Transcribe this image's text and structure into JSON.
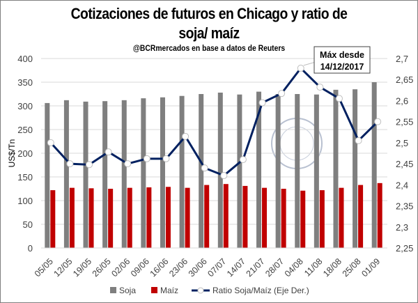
{
  "chart_data": {
    "type": "bar",
    "title_line1": "Cotizaciones de futuros en Chicago y ratio de",
    "title_line2": "soja/ maíz",
    "subtitle": "@BCRmercados en base a datos de Reuters",
    "ylabel": "US$/Tn",
    "ylim": [
      0,
      400
    ],
    "y_ticks": [
      "0",
      "50",
      "100",
      "150",
      "200",
      "250",
      "300",
      "350",
      "400"
    ],
    "y2lim": [
      2.25,
      2.7
    ],
    "y2_ticks": [
      "2,25",
      "2,3",
      "2,35",
      "2,4",
      "2,45",
      "2,5",
      "2,55",
      "2,6",
      "2,65",
      "2,7"
    ],
    "categories": [
      "05/05",
      "12/05",
      "19/05",
      "26/05",
      "02/06",
      "09/06",
      "16/06",
      "23/06",
      "30/06",
      "07/07",
      "14/07",
      "21/07",
      "28/07",
      "04/08",
      "11/08",
      "18/08",
      "25/08",
      "01/09"
    ],
    "series": [
      {
        "name": "Soja",
        "type": "bar",
        "color": "#7f7f7f",
        "values": [
          306,
          312,
          309,
          310,
          312,
          316,
          318,
          321,
          325,
          328,
          324,
          330,
          325,
          325,
          324,
          334,
          335,
          350
        ]
      },
      {
        "name": "Maíz",
        "type": "bar",
        "color": "#c00000",
        "values": [
          122,
          127,
          126,
          125,
          127,
          128,
          129,
          127,
          133,
          135,
          131,
          127,
          125,
          121,
          122,
          127,
          133,
          137
        ]
      },
      {
        "name": "Ratio Soja/Maíz (Eje Der.)",
        "type": "line",
        "axis": "right",
        "color": "#002060",
        "values": [
          2.5,
          2.45,
          2.448,
          2.478,
          2.45,
          2.462,
          2.462,
          2.515,
          2.44,
          2.422,
          2.46,
          2.595,
          2.617,
          2.677,
          2.632,
          2.605,
          2.505,
          2.55
        ]
      }
    ],
    "annotation": {
      "line1": "Máx desde",
      "line2": "14/12/2017",
      "category": "04/08"
    },
    "legend": "bottom",
    "grid": true
  },
  "watermark": "BOLSA DE COMERCIO DE ROSARIO"
}
